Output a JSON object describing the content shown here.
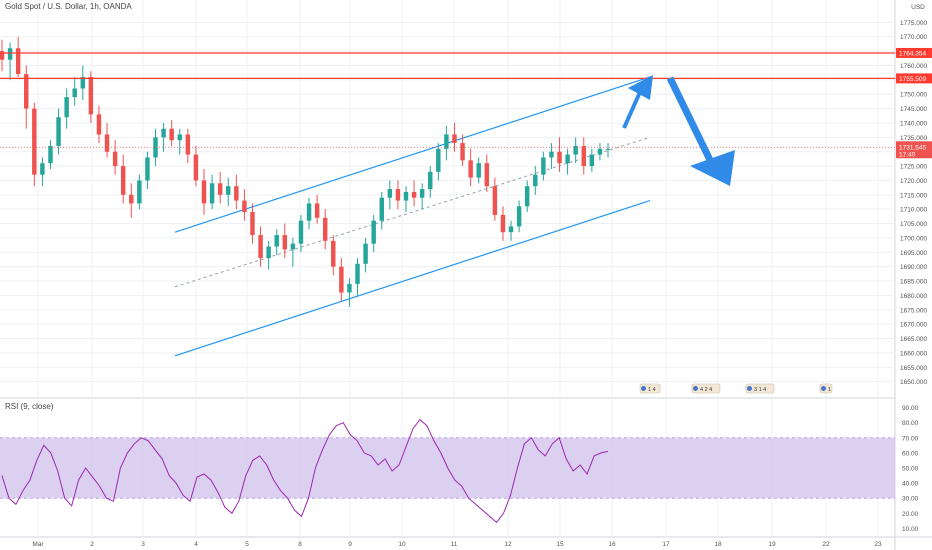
{
  "header": {
    "title": "Gold Spot / U.S. Dollar, 1h, OANDA",
    "currency": "USD"
  },
  "rsi_title": "RSI (9, close)",
  "colors": {
    "up": "#26a69a",
    "down": "#ef5350",
    "channel": "#2196f3",
    "resistance": "#ff3b30",
    "arrow": "#2f8ae8",
    "rsi_line": "#9c27b0",
    "rsi_band": "#d6c8ef",
    "current_price_label": "#ef5350"
  },
  "events": [
    {
      "label": "1 4"
    },
    {
      "label": "4 2 4"
    },
    {
      "label": "3 1 4"
    },
    {
      "label": "1"
    }
  ],
  "chart_data": [
    {
      "type": "candlestick",
      "title": "Gold Spot / U.S. Dollar, 1h, OANDA",
      "ylim": [
        1645,
        1780
      ],
      "y_ticks": [
        "1775.000",
        "1770.000",
        "1765.000",
        "1760.000",
        "1755.000",
        "1750.000",
        "1745.000",
        "1740.000",
        "1735.000",
        "1730.000",
        "1725.000",
        "1720.000",
        "1715.000",
        "1710.000",
        "1705.000",
        "1700.000",
        "1695.000",
        "1690.000",
        "1685.000",
        "1680.000",
        "1675.000",
        "1670.000",
        "1665.000",
        "1660.000",
        "1655.000",
        "1650.000"
      ],
      "x_labels": [
        "Mar",
        "2",
        "3",
        "4",
        "5",
        "8",
        "9",
        "10",
        "11",
        "12",
        "15",
        "16",
        "17",
        "18",
        "19",
        "22",
        "23"
      ],
      "current_price": {
        "value": 1731.545,
        "label": "1731.545",
        "countdown": "17:40"
      },
      "horizontal_levels": [
        {
          "value": 1764.354,
          "label": "1764.354"
        },
        {
          "value": 1755.509,
          "label": "1755.509"
        }
      ],
      "channel": {
        "upper": {
          "start": 1702,
          "end": 1756
        },
        "lower": {
          "start": 1659,
          "end": 1713
        },
        "mid": {
          "start": 1683,
          "end": 1735
        }
      },
      "candles": [
        {
          "o": 1765,
          "h": 1769,
          "l": 1758,
          "c": 1762
        },
        {
          "o": 1762,
          "h": 1768,
          "l": 1755,
          "c": 1766
        },
        {
          "o": 1766,
          "h": 1770,
          "l": 1756,
          "c": 1757
        },
        {
          "o": 1757,
          "h": 1760,
          "l": 1738,
          "c": 1745
        },
        {
          "o": 1745,
          "h": 1747,
          "l": 1718,
          "c": 1722
        },
        {
          "o": 1722,
          "h": 1728,
          "l": 1718,
          "c": 1726
        },
        {
          "o": 1726,
          "h": 1734,
          "l": 1724,
          "c": 1732
        },
        {
          "o": 1732,
          "h": 1745,
          "l": 1729,
          "c": 1742
        },
        {
          "o": 1742,
          "h": 1752,
          "l": 1738,
          "c": 1749
        },
        {
          "o": 1749,
          "h": 1756,
          "l": 1746,
          "c": 1752
        },
        {
          "o": 1752,
          "h": 1760,
          "l": 1748,
          "c": 1756
        },
        {
          "o": 1756,
          "h": 1758,
          "l": 1740,
          "c": 1743
        },
        {
          "o": 1743,
          "h": 1746,
          "l": 1733,
          "c": 1736
        },
        {
          "o": 1736,
          "h": 1740,
          "l": 1728,
          "c": 1730
        },
        {
          "o": 1730,
          "h": 1734,
          "l": 1722,
          "c": 1725
        },
        {
          "o": 1725,
          "h": 1729,
          "l": 1712,
          "c": 1715
        },
        {
          "o": 1715,
          "h": 1719,
          "l": 1707,
          "c": 1712
        },
        {
          "o": 1712,
          "h": 1722,
          "l": 1710,
          "c": 1720
        },
        {
          "o": 1720,
          "h": 1730,
          "l": 1717,
          "c": 1728
        },
        {
          "o": 1728,
          "h": 1738,
          "l": 1725,
          "c": 1735
        },
        {
          "o": 1735,
          "h": 1740,
          "l": 1730,
          "c": 1738
        },
        {
          "o": 1738,
          "h": 1741,
          "l": 1732,
          "c": 1734
        },
        {
          "o": 1734,
          "h": 1738,
          "l": 1729,
          "c": 1736
        },
        {
          "o": 1736,
          "h": 1738,
          "l": 1726,
          "c": 1729
        },
        {
          "o": 1729,
          "h": 1732,
          "l": 1718,
          "c": 1720
        },
        {
          "o": 1720,
          "h": 1724,
          "l": 1708,
          "c": 1712
        },
        {
          "o": 1712,
          "h": 1722,
          "l": 1710,
          "c": 1719
        },
        {
          "o": 1719,
          "h": 1723,
          "l": 1712,
          "c": 1715
        },
        {
          "o": 1715,
          "h": 1721,
          "l": 1711,
          "c": 1718
        },
        {
          "o": 1718,
          "h": 1722,
          "l": 1710,
          "c": 1713
        },
        {
          "o": 1713,
          "h": 1717,
          "l": 1706,
          "c": 1709
        },
        {
          "o": 1709,
          "h": 1712,
          "l": 1698,
          "c": 1701
        },
        {
          "o": 1701,
          "h": 1704,
          "l": 1690,
          "c": 1693
        },
        {
          "o": 1693,
          "h": 1699,
          "l": 1689,
          "c": 1697
        },
        {
          "o": 1697,
          "h": 1703,
          "l": 1694,
          "c": 1701
        },
        {
          "o": 1701,
          "h": 1705,
          "l": 1693,
          "c": 1696
        },
        {
          "o": 1696,
          "h": 1700,
          "l": 1690,
          "c": 1698
        },
        {
          "o": 1698,
          "h": 1708,
          "l": 1695,
          "c": 1706
        },
        {
          "o": 1706,
          "h": 1714,
          "l": 1703,
          "c": 1712
        },
        {
          "o": 1712,
          "h": 1715,
          "l": 1705,
          "c": 1707
        },
        {
          "o": 1707,
          "h": 1710,
          "l": 1696,
          "c": 1699
        },
        {
          "o": 1699,
          "h": 1701,
          "l": 1687,
          "c": 1690
        },
        {
          "o": 1690,
          "h": 1693,
          "l": 1678,
          "c": 1681
        },
        {
          "o": 1681,
          "h": 1686,
          "l": 1676,
          "c": 1684
        },
        {
          "o": 1684,
          "h": 1693,
          "l": 1680,
          "c": 1691
        },
        {
          "o": 1691,
          "h": 1700,
          "l": 1688,
          "c": 1698
        },
        {
          "o": 1698,
          "h": 1708,
          "l": 1695,
          "c": 1706
        },
        {
          "o": 1706,
          "h": 1716,
          "l": 1703,
          "c": 1714
        },
        {
          "o": 1714,
          "h": 1720,
          "l": 1710,
          "c": 1717
        },
        {
          "o": 1717,
          "h": 1720,
          "l": 1710,
          "c": 1713
        },
        {
          "o": 1713,
          "h": 1718,
          "l": 1709,
          "c": 1716
        },
        {
          "o": 1716,
          "h": 1720,
          "l": 1711,
          "c": 1714
        },
        {
          "o": 1714,
          "h": 1719,
          "l": 1710,
          "c": 1717
        },
        {
          "o": 1717,
          "h": 1725,
          "l": 1714,
          "c": 1723
        },
        {
          "o": 1723,
          "h": 1733,
          "l": 1720,
          "c": 1731
        },
        {
          "o": 1731,
          "h": 1739,
          "l": 1727,
          "c": 1736
        },
        {
          "o": 1736,
          "h": 1740,
          "l": 1730,
          "c": 1733
        },
        {
          "o": 1733,
          "h": 1736,
          "l": 1725,
          "c": 1727
        },
        {
          "o": 1727,
          "h": 1731,
          "l": 1718,
          "c": 1721
        },
        {
          "o": 1721,
          "h": 1728,
          "l": 1719,
          "c": 1726
        },
        {
          "o": 1726,
          "h": 1729,
          "l": 1716,
          "c": 1718
        },
        {
          "o": 1718,
          "h": 1721,
          "l": 1706,
          "c": 1708
        },
        {
          "o": 1708,
          "h": 1711,
          "l": 1699,
          "c": 1702
        },
        {
          "o": 1702,
          "h": 1706,
          "l": 1699,
          "c": 1704
        },
        {
          "o": 1704,
          "h": 1713,
          "l": 1702,
          "c": 1711
        },
        {
          "o": 1711,
          "h": 1720,
          "l": 1709,
          "c": 1718
        },
        {
          "o": 1718,
          "h": 1725,
          "l": 1715,
          "c": 1722
        },
        {
          "o": 1722,
          "h": 1730,
          "l": 1720,
          "c": 1728
        },
        {
          "o": 1728,
          "h": 1733,
          "l": 1724,
          "c": 1730
        },
        {
          "o": 1730,
          "h": 1735,
          "l": 1723,
          "c": 1726
        },
        {
          "o": 1726,
          "h": 1731,
          "l": 1722,
          "c": 1729
        },
        {
          "o": 1729,
          "h": 1735,
          "l": 1726,
          "c": 1732
        },
        {
          "o": 1732,
          "h": 1735,
          "l": 1722,
          "c": 1725
        },
        {
          "o": 1725,
          "h": 1731,
          "l": 1723,
          "c": 1729
        },
        {
          "o": 1729,
          "h": 1733,
          "l": 1727,
          "c": 1731
        },
        {
          "o": 1731,
          "h": 1733,
          "l": 1728,
          "c": 1731
        }
      ]
    },
    {
      "type": "line",
      "title": "RSI (9, close)",
      "ylim": [
        5,
        95
      ],
      "y_ticks": [
        "90.00",
        "80.00",
        "70.00",
        "60.00",
        "50.00",
        "40.00",
        "30.00",
        "20.00",
        "10.00"
      ],
      "band": [
        30,
        70
      ],
      "values": [
        45,
        30,
        26,
        35,
        42,
        55,
        65,
        60,
        48,
        30,
        25,
        42,
        50,
        44,
        38,
        30,
        28,
        50,
        60,
        66,
        70,
        68,
        62,
        56,
        45,
        40,
        32,
        28,
        44,
        46,
        42,
        34,
        24,
        20,
        28,
        45,
        55,
        58,
        52,
        42,
        35,
        30,
        22,
        18,
        30,
        50,
        62,
        72,
        78,
        80,
        72,
        68,
        60,
        58,
        52,
        56,
        48,
        52,
        64,
        76,
        82,
        78,
        68,
        60,
        50,
        42,
        38,
        30,
        26,
        22,
        18,
        14,
        20,
        32,
        50,
        66,
        70,
        62,
        58,
        66,
        70,
        56,
        48,
        52,
        46,
        58,
        60,
        61
      ]
    }
  ]
}
